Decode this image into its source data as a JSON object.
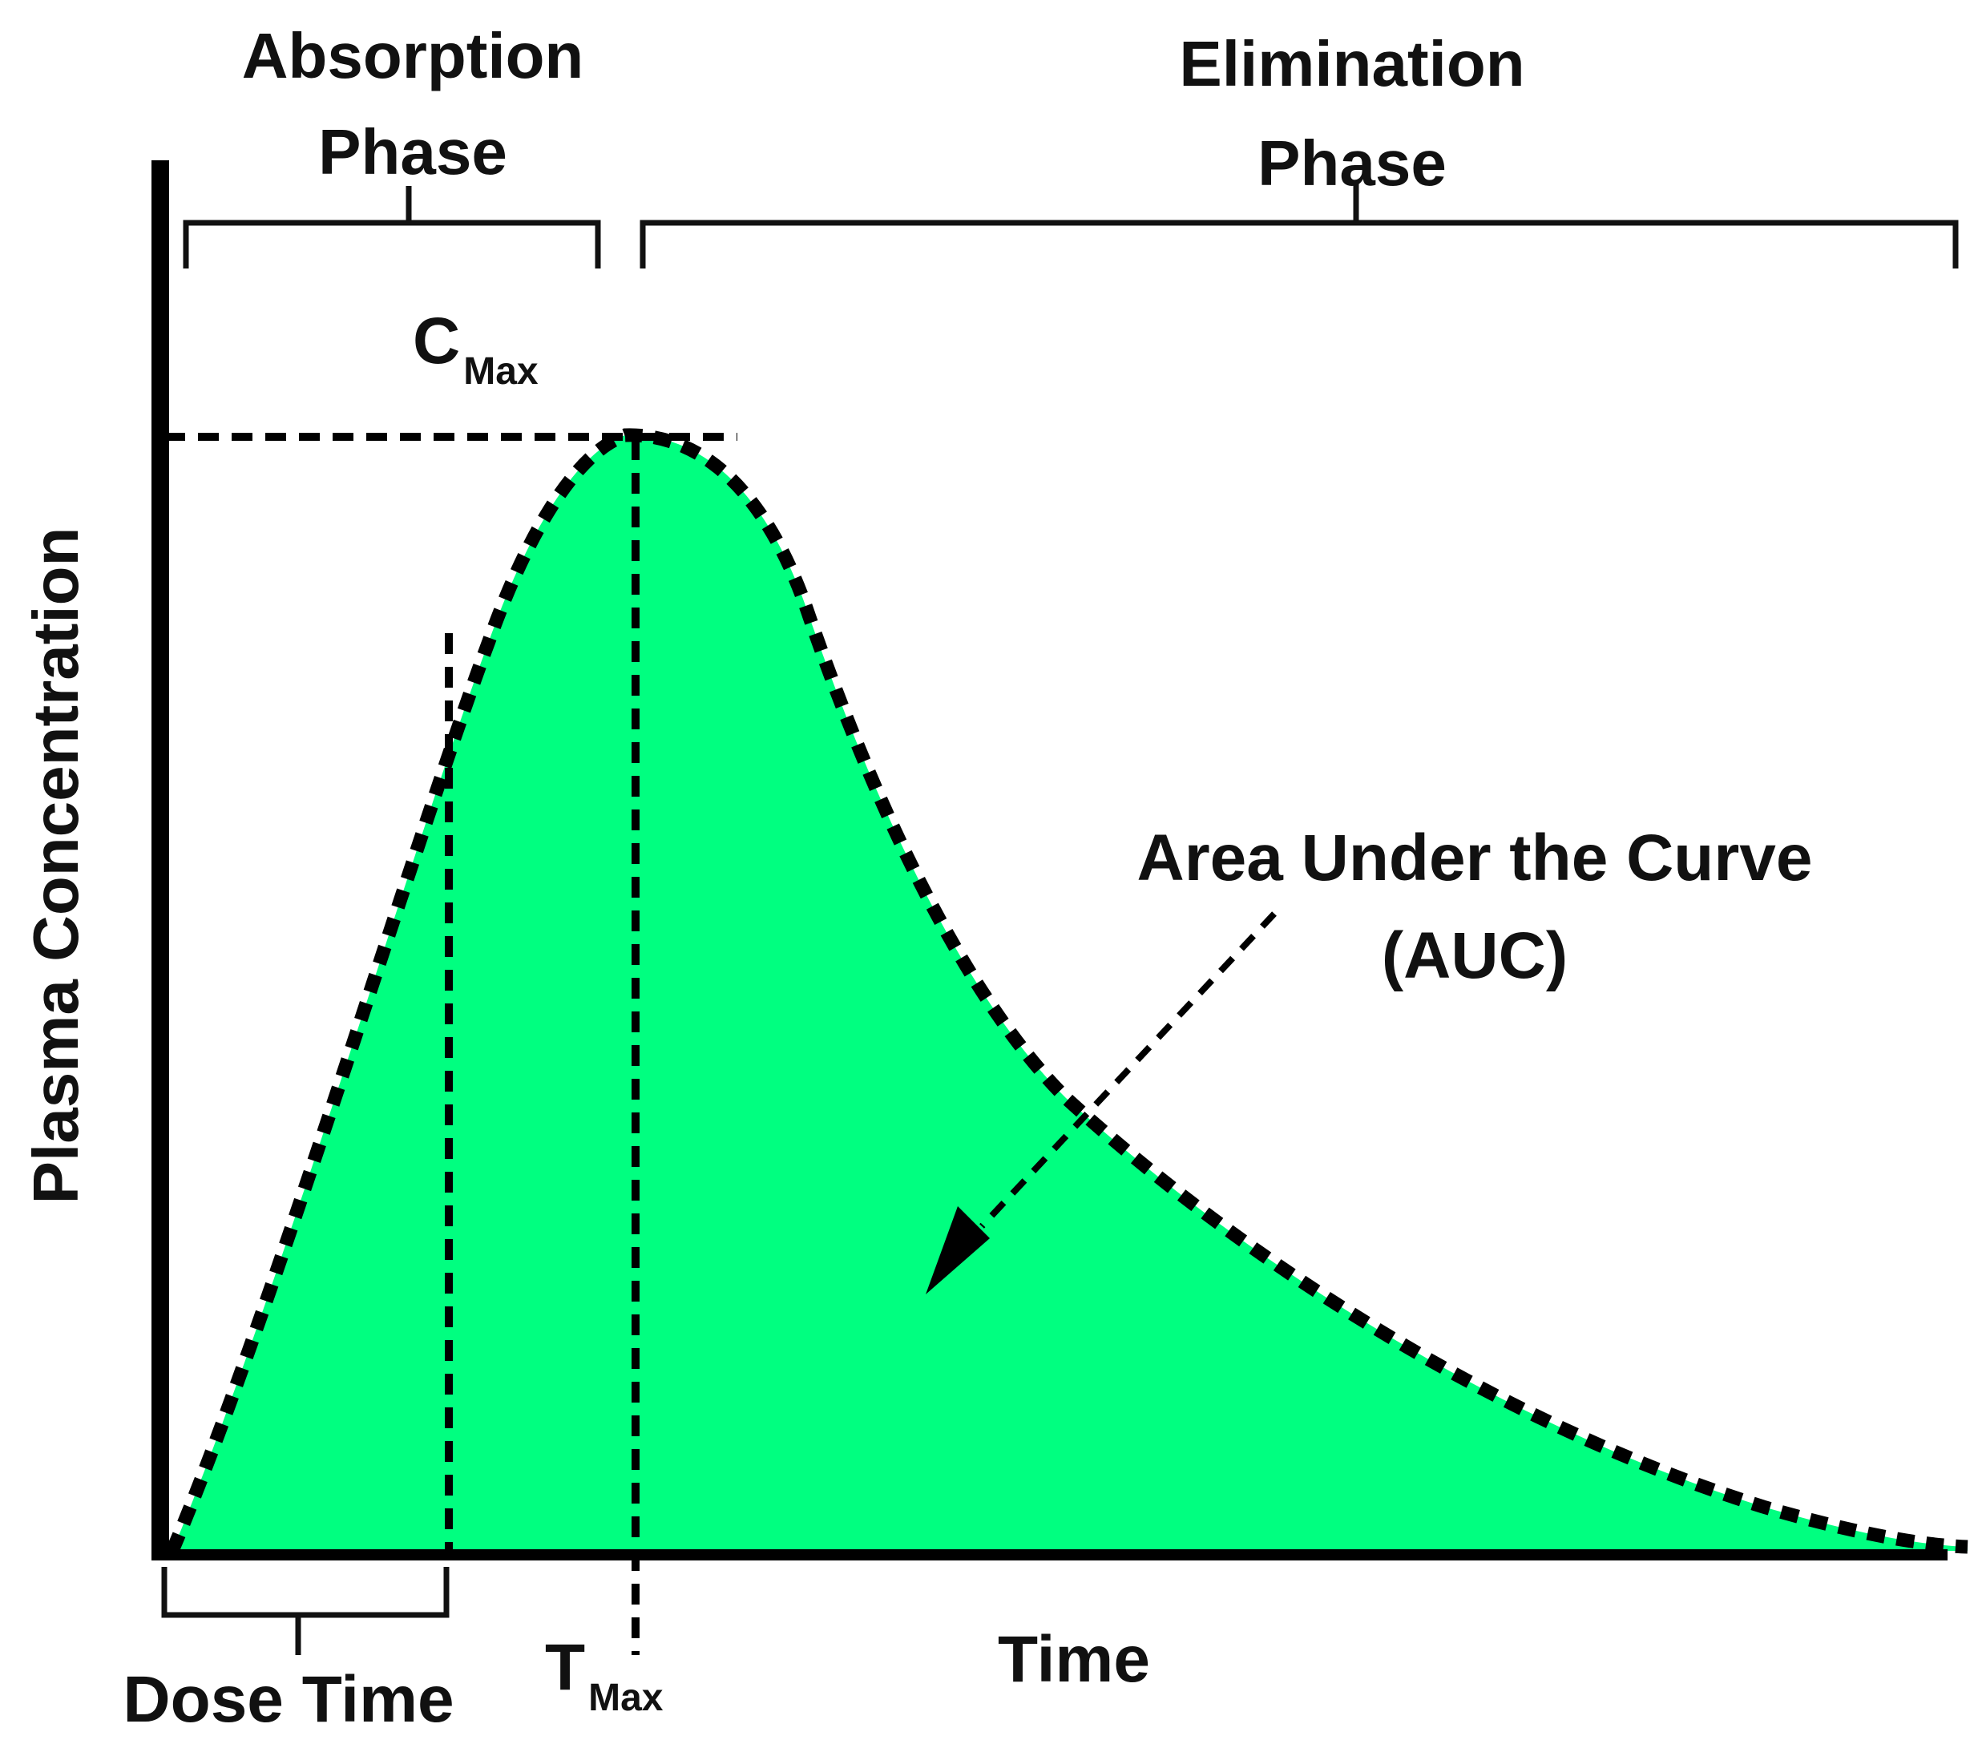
{
  "phases": {
    "absorption": [
      "Absorption",
      "Phase"
    ],
    "elimination": [
      "Elimination",
      "Phase"
    ]
  },
  "cmax": {
    "main": "C",
    "sub": "Max"
  },
  "tmax": {
    "main": "T",
    "sub": "Max"
  },
  "auc_label": [
    "Area Under the Curve",
    "(AUC)"
  ],
  "dose_time_label": "Dose Time",
  "x_axis_label": "Time",
  "y_axis_label": "Plasma Concentration",
  "colors": {
    "curve_fill": "#00ff80",
    "lines": "#000000"
  }
}
